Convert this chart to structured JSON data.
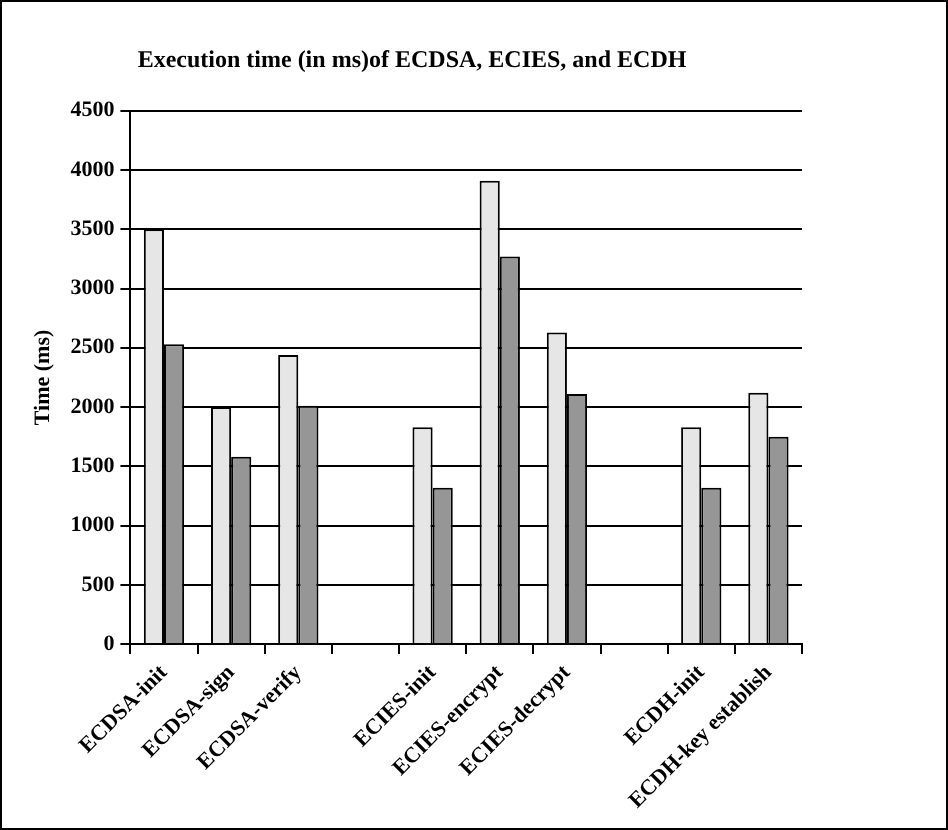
{
  "chart_data": {
    "type": "bar",
    "title": "Execution time (in ms)of ECDSA, ECIES, and ECDH",
    "ylabel": "Time (ms)",
    "categories": [
      "ECDSA-init",
      "ECDSA-sign",
      "ECDSA-verify",
      null,
      "ECIES-init",
      "ECIES-encrypt",
      "ECIES-decrypt",
      null,
      "ECDH-init",
      "ECDH-key establish"
    ],
    "series": [
      {
        "color": "#e6e6e6",
        "values": [
          3500,
          2000,
          2440,
          null,
          1830,
          3910,
          2630,
          null,
          1830,
          2120
        ]
      },
      {
        "color": "#969696",
        "values": [
          2530,
          1580,
          2010,
          null,
          1320,
          3270,
          2110,
          null,
          1320,
          1750
        ]
      }
    ],
    "ylim": [
      0,
      4500
    ],
    "yticks": [
      0,
      500,
      1000,
      1500,
      2000,
      2500,
      3000,
      3500,
      4000,
      4500
    ],
    "grid": "y",
    "legend": false
  }
}
